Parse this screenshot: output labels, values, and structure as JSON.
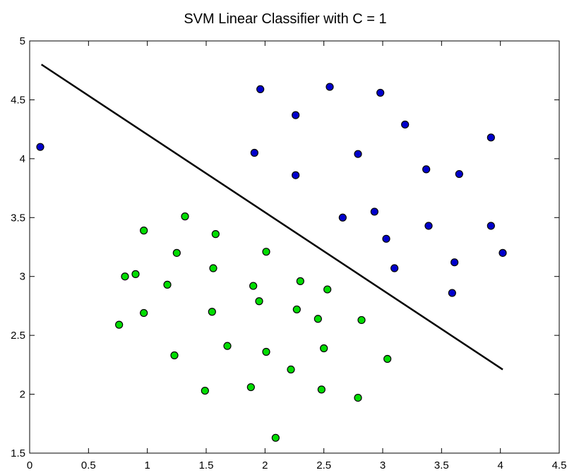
{
  "chart_data": {
    "type": "scatter",
    "title": "SVM Linear Classifier with C = 1",
    "xlabel": "",
    "ylabel": "",
    "xlim": [
      0,
      4.5
    ],
    "ylim": [
      1.5,
      5
    ],
    "grid": false,
    "x_ticks": [
      "0",
      "0.5",
      "1",
      "1.5",
      "2",
      "2.5",
      "3",
      "3.5",
      "4",
      "4.5"
    ],
    "y_ticks": [
      "1.5",
      "2",
      "2.5",
      "3",
      "3.5",
      "4",
      "4.5",
      "5"
    ],
    "boundary": {
      "x": [
        0.1,
        4.02
      ],
      "y": [
        4.8,
        2.21
      ]
    },
    "series": [
      {
        "color": "#0000cc",
        "points": [
          [
            0.09,
            4.1
          ],
          [
            1.96,
            4.59
          ],
          [
            2.55,
            4.61
          ],
          [
            2.98,
            4.56
          ],
          [
            2.26,
            4.37
          ],
          [
            3.19,
            4.29
          ],
          [
            3.92,
            4.18
          ],
          [
            1.91,
            4.05
          ],
          [
            2.79,
            4.04
          ],
          [
            3.37,
            3.91
          ],
          [
            2.26,
            3.86
          ],
          [
            3.65,
            3.87
          ],
          [
            2.66,
            3.5
          ],
          [
            2.93,
            3.55
          ],
          [
            3.39,
            3.43
          ],
          [
            3.92,
            3.43
          ],
          [
            3.03,
            3.32
          ],
          [
            4.02,
            3.2
          ],
          [
            3.61,
            3.12
          ],
          [
            3.1,
            3.07
          ],
          [
            3.59,
            2.86
          ]
        ]
      },
      {
        "color": "#00dd00",
        "points": [
          [
            1.32,
            3.51
          ],
          [
            0.97,
            3.39
          ],
          [
            1.58,
            3.36
          ],
          [
            1.25,
            3.2
          ],
          [
            2.01,
            3.21
          ],
          [
            1.56,
            3.07
          ],
          [
            0.81,
            3.0
          ],
          [
            0.9,
            3.02
          ],
          [
            1.17,
            2.93
          ],
          [
            1.9,
            2.92
          ],
          [
            2.3,
            2.96
          ],
          [
            2.53,
            2.89
          ],
          [
            1.95,
            2.79
          ],
          [
            0.97,
            2.69
          ],
          [
            1.55,
            2.7
          ],
          [
            2.27,
            2.72
          ],
          [
            2.45,
            2.64
          ],
          [
            2.82,
            2.63
          ],
          [
            0.76,
            2.59
          ],
          [
            1.68,
            2.41
          ],
          [
            2.01,
            2.36
          ],
          [
            2.5,
            2.39
          ],
          [
            1.23,
            2.33
          ],
          [
            3.04,
            2.3
          ],
          [
            2.22,
            2.21
          ],
          [
            1.49,
            2.03
          ],
          [
            1.88,
            2.06
          ],
          [
            2.48,
            2.04
          ],
          [
            2.79,
            1.97
          ],
          [
            2.09,
            1.63
          ]
        ]
      }
    ]
  }
}
